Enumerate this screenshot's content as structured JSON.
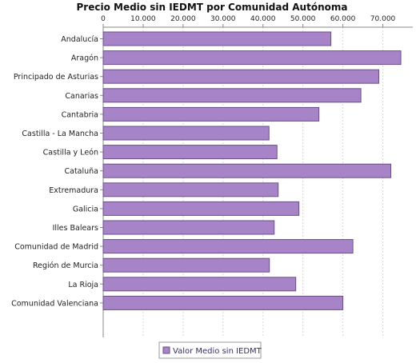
{
  "chart_data": {
    "type": "bar",
    "orientation": "horizontal",
    "title": "Precio Medio sin IEDMT por Comunidad Autónoma",
    "categories": [
      "Andalucía",
      "Aragón",
      "Principado de Asturias",
      "Canarias",
      "Cantabria",
      "Castilla - La Mancha",
      "Castilla y León",
      "Cataluña",
      "Extremadura",
      "Galicia",
      "Illes Balears",
      "Comunidad de Madrid",
      "Región de Murcia",
      "La Rioja",
      "Comunidad Valenciana"
    ],
    "series": [
      {
        "name": "Valor Medio sin IEDMT",
        "values": [
          57000,
          74500,
          69000,
          64500,
          54000,
          41500,
          43500,
          72000,
          43800,
          49000,
          42800,
          62500,
          41600,
          48200,
          60000
        ]
      }
    ],
    "x_ticks": [
      "0",
      "10.000",
      "20.000",
      "30.000",
      "40.000",
      "50.000",
      "60.000",
      "70.000"
    ],
    "xlim": [
      0,
      77500
    ],
    "tick_step": 10000,
    "axis_position": "top",
    "grid": true,
    "legend_position": "bottom",
    "colors": {
      "bar_fill": "#a784c8",
      "bar_stroke": "#6a4f86",
      "grid": "#d8d8d8",
      "axis": "#888888",
      "text": "#222222",
      "legend_text": "#3a2a6a"
    }
  }
}
